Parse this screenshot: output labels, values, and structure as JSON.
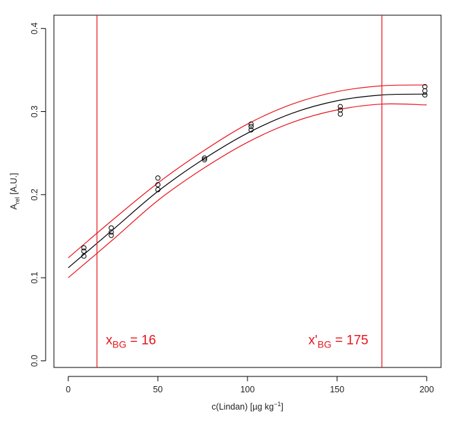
{
  "chart_data": {
    "type": "scatter",
    "title": "",
    "xlabel": "c(Lindan) [µg kg",
    "xlabel_superscript": "−1",
    "xlabel_suffix": "]",
    "ylabel_main": "A",
    "ylabel_subscript": "rel",
    "ylabel_suffix": " [A.U.]",
    "xlim": [
      -8,
      208
    ],
    "ylim": [
      -0.008,
      0.416
    ],
    "x_ticks": [
      0,
      50,
      100,
      150,
      200
    ],
    "x_tick_labels": [
      "0",
      "50",
      "100",
      "150",
      "200"
    ],
    "y_ticks": [
      0.0,
      0.1,
      0.2,
      0.3,
      0.4
    ],
    "y_tick_labels": [
      "0.0",
      "0.1",
      "0.2",
      "0.3",
      "0.4"
    ],
    "grid": false,
    "legend": "none",
    "series": [
      {
        "marker": "open-circle",
        "color": "#000000",
        "points": [
          [
            8.7,
            0.136
          ],
          [
            8.7,
            0.132
          ],
          [
            8.7,
            0.126
          ],
          [
            24.0,
            0.16
          ],
          [
            24.0,
            0.155
          ],
          [
            24.0,
            0.151
          ],
          [
            50.0,
            0.22
          ],
          [
            50.0,
            0.212
          ],
          [
            50.0,
            0.206
          ],
          [
            76.0,
            0.244
          ],
          [
            76.0,
            0.242
          ],
          [
            102.0,
            0.285
          ],
          [
            102.0,
            0.282
          ],
          [
            102.0,
            0.278
          ],
          [
            151.8,
            0.306
          ],
          [
            151.8,
            0.302
          ],
          [
            151.8,
            0.297
          ],
          [
            199.0,
            0.33
          ],
          [
            199.0,
            0.325
          ],
          [
            199.0,
            0.32
          ]
        ]
      }
    ],
    "curves": [
      {
        "role": "fit",
        "color": "#000000",
        "x": [
          0,
          25,
          50,
          75,
          100,
          125,
          150,
          175,
          200
        ],
        "y": [
          0.112,
          0.158,
          0.204,
          0.242,
          0.274,
          0.298,
          0.313,
          0.32,
          0.321
        ]
      },
      {
        "role": "upper-band",
        "color": "#e8141b",
        "x": [
          0,
          25,
          50,
          75,
          100,
          125,
          150,
          175,
          200
        ],
        "y": [
          0.124,
          0.17,
          0.214,
          0.252,
          0.285,
          0.309,
          0.324,
          0.331,
          0.332
        ]
      },
      {
        "role": "lower-band",
        "color": "#e8141b",
        "x": [
          0,
          25,
          50,
          75,
          100,
          125,
          150,
          175,
          200
        ],
        "y": [
          0.1,
          0.146,
          0.193,
          0.231,
          0.263,
          0.287,
          0.302,
          0.309,
          0.308
        ]
      }
    ],
    "vlines": [
      {
        "x": 16,
        "color": "#e8141b"
      },
      {
        "x": 175,
        "color": "#e8141b"
      }
    ],
    "annotations": [
      {
        "main": "x",
        "sub": "BG",
        "rest": " = 16",
        "x": 21,
        "y": 0.02,
        "color": "#e8141b"
      },
      {
        "main": "x'",
        "sub": "BG",
        "rest": " = 175",
        "x": 134,
        "y": 0.02,
        "color": "#e8141b"
      }
    ]
  }
}
